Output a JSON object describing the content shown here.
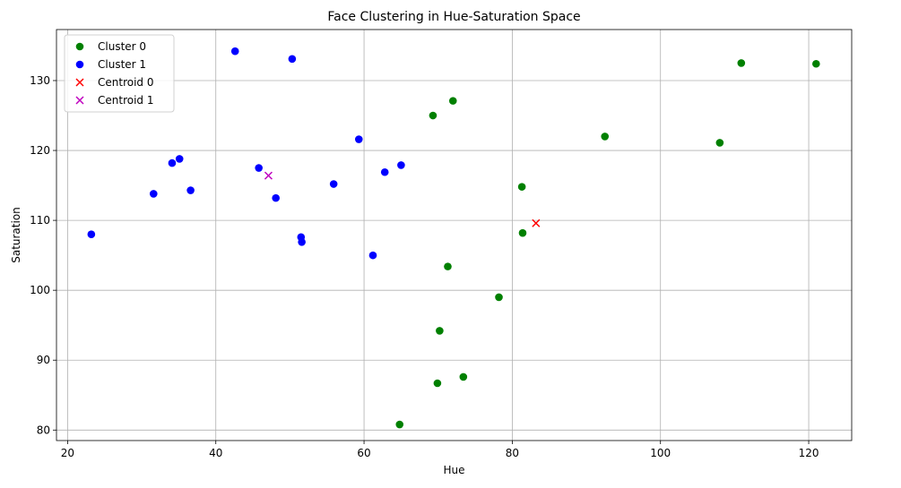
{
  "chart_data": {
    "type": "scatter",
    "title": "Face Clustering in Hue-Saturation Space",
    "xlabel": "Hue",
    "ylabel": "Saturation",
    "xlim": [
      18.5,
      125.8
    ],
    "ylim": [
      78.5,
      137.3
    ],
    "xticks": [
      20,
      40,
      60,
      80,
      100,
      120
    ],
    "yticks": [
      80,
      90,
      100,
      110,
      120,
      130
    ],
    "grid": true,
    "legend_position": "top-left",
    "series": [
      {
        "name": "Cluster 0",
        "marker": "circle",
        "color": "#008000",
        "points": [
          [
            64.8,
            80.8
          ],
          [
            69.9,
            86.7
          ],
          [
            73.4,
            87.6
          ],
          [
            70.2,
            94.2
          ],
          [
            78.2,
            99.0
          ],
          [
            71.3,
            103.4
          ],
          [
            81.4,
            108.2
          ],
          [
            81.3,
            114.8
          ],
          [
            92.5,
            122.0
          ],
          [
            108.0,
            121.1
          ],
          [
            69.3,
            125.0
          ],
          [
            72.0,
            127.1
          ],
          [
            110.9,
            132.5
          ],
          [
            121.0,
            132.4
          ]
        ]
      },
      {
        "name": "Cluster 1",
        "marker": "circle",
        "color": "#0000ff",
        "points": [
          [
            23.2,
            108.0
          ],
          [
            31.6,
            113.8
          ],
          [
            36.6,
            114.3
          ],
          [
            34.1,
            118.2
          ],
          [
            35.1,
            118.8
          ],
          [
            42.6,
            134.2
          ],
          [
            45.8,
            117.5
          ],
          [
            48.1,
            113.2
          ],
          [
            50.3,
            133.1
          ],
          [
            51.5,
            107.6
          ],
          [
            51.6,
            106.9
          ],
          [
            55.9,
            115.2
          ],
          [
            59.3,
            121.6
          ],
          [
            61.2,
            105.0
          ],
          [
            62.8,
            116.9
          ],
          [
            65.0,
            117.9
          ]
        ]
      },
      {
        "name": "Centroid 0",
        "marker": "x",
        "color": "#ff0000",
        "points": [
          [
            83.2,
            109.6
          ]
        ]
      },
      {
        "name": "Centroid 1",
        "marker": "x",
        "color": "#bf00bf",
        "points": [
          [
            47.1,
            116.4
          ]
        ]
      }
    ]
  }
}
